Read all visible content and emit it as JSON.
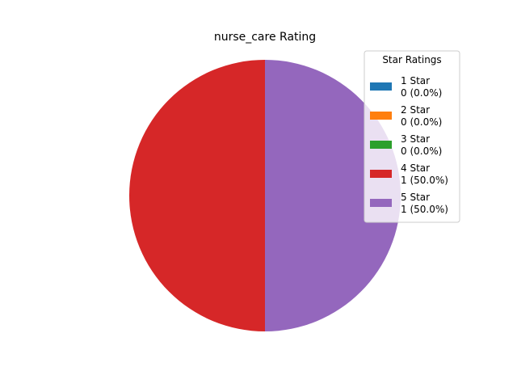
{
  "chart_data": {
    "type": "pie",
    "title": "nurse_care Rating",
    "start_angle_deg": 90,
    "direction": "counterclockwise",
    "slices": [
      {
        "label": "1 Star",
        "value": 0,
        "display": "0 (0.0%)",
        "color": "#1f77b4"
      },
      {
        "label": "2 Star",
        "value": 0,
        "display": "0 (0.0%)",
        "color": "#ff7f0e"
      },
      {
        "label": "3 Star",
        "value": 0,
        "display": "0 (0.0%)",
        "color": "#2ca02c"
      },
      {
        "label": "4 Star",
        "value": 1,
        "display": "1 (50.0%)",
        "color": "#d62728"
      },
      {
        "label": "5 Star",
        "value": 1,
        "display": "1 (50.0%)",
        "color": "#9467bd"
      }
    ],
    "legend": {
      "title": "Star Ratings",
      "placement": "top-right"
    }
  }
}
